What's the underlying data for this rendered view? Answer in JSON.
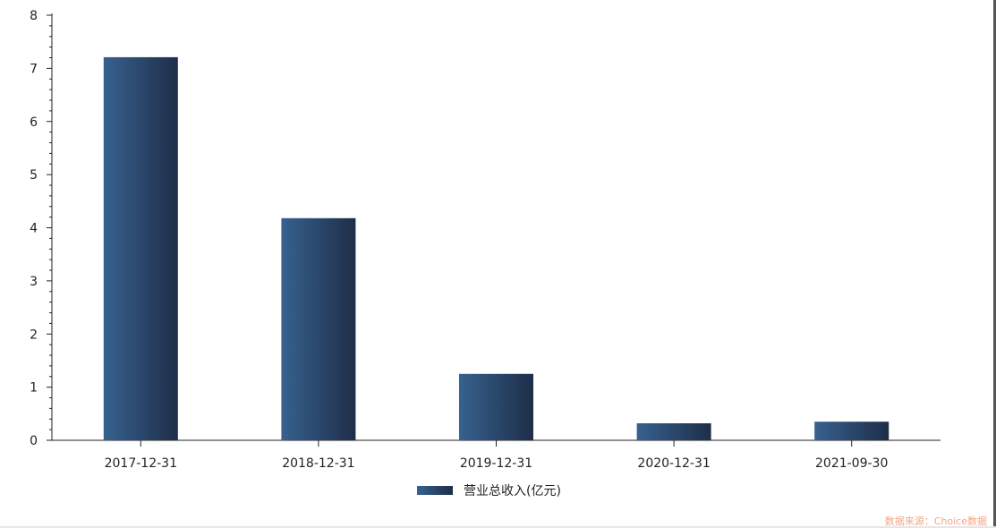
{
  "chart_data": {
    "type": "bar",
    "categories": [
      "2017-12-31",
      "2018-12-31",
      "2019-12-31",
      "2020-12-31",
      "2021-09-30"
    ],
    "series": [
      {
        "name": "营业总收入(亿元)",
        "values": [
          7.21,
          4.18,
          1.25,
          0.32,
          0.35
        ]
      }
    ],
    "ylim": [
      0,
      8
    ],
    "yticks": [
      0,
      1,
      2,
      3,
      4,
      5,
      6,
      7,
      8
    ],
    "grid": false,
    "legend": "bottom",
    "colors": {
      "bar_start": "#37618f",
      "bar_end": "#1e2e48",
      "source": "#f4a582"
    }
  },
  "source_note": "数据来源：Choice数据"
}
